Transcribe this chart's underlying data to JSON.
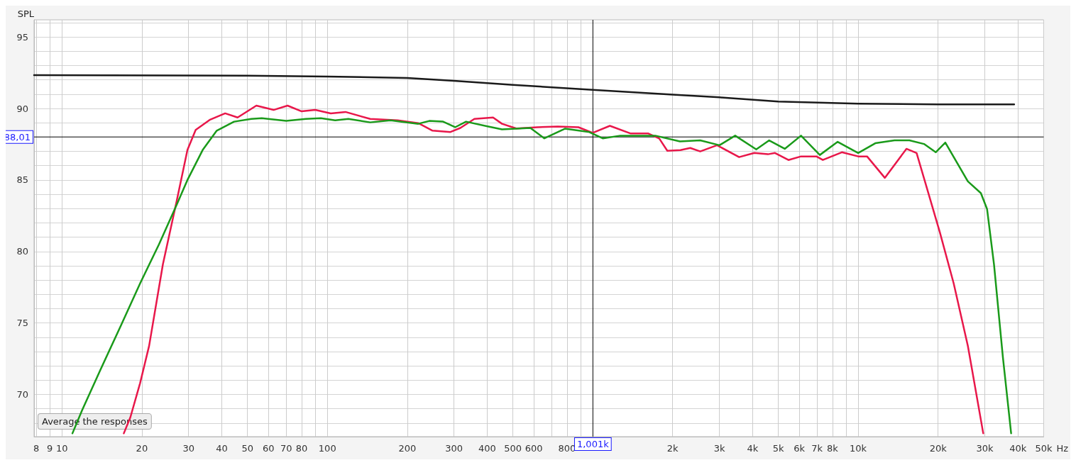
{
  "chart_data": {
    "type": "line",
    "ylabel": "SPL",
    "xlabel": "Hz",
    "log": "x",
    "grid": true,
    "marker": "none",
    "line_style": "solid",
    "xlim": [
      7.85,
      50000
    ],
    "ylim": [
      67.05,
      96.2
    ],
    "xticks": [
      8,
      9,
      10,
      20,
      30,
      40,
      50,
      60,
      70,
      {
        "value": 80,
        "label": "80"
      },
      {
        "value": 90,
        "label": null
      },
      100,
      200,
      300,
      400,
      500,
      600,
      {
        "value": 700,
        "label": null
      },
      {
        "value": 800,
        "label": "800"
      },
      {
        "value": 900,
        "label": null
      },
      {
        "value": 2000,
        "label": "2k"
      },
      {
        "value": 3000,
        "label": "3k"
      },
      {
        "value": 4000,
        "label": "4k"
      },
      {
        "value": 5000,
        "label": "5k"
      },
      {
        "value": 6000,
        "label": "6k"
      },
      {
        "value": 7000,
        "label": "7k"
      },
      {
        "value": 8000,
        "label": "8k"
      },
      {
        "value": 9000,
        "label": null
      },
      {
        "value": 10000,
        "label": "10k"
      },
      {
        "value": 20000,
        "label": "20k"
      },
      {
        "value": 30000,
        "label": "30k"
      },
      {
        "value": 40000,
        "label": "40k"
      },
      {
        "value": 50000,
        "label": "50k"
      }
    ],
    "yticks": [
      {
        "value": 68,
        "label": null
      },
      {
        "value": 69,
        "label": null
      },
      70,
      {
        "value": 71,
        "label": null
      },
      {
        "value": 72,
        "label": null
      },
      {
        "value": 73,
        "label": null
      },
      {
        "value": 74,
        "label": null
      },
      75,
      {
        "value": 76,
        "label": null
      },
      {
        "value": 77,
        "label": null
      },
      {
        "value": 78,
        "label": null
      },
      {
        "value": 79,
        "label": null
      },
      80,
      {
        "value": 81,
        "label": null
      },
      {
        "value": 82,
        "label": null
      },
      {
        "value": 83,
        "label": null
      },
      {
        "value": 84,
        "label": null
      },
      85,
      {
        "value": 86,
        "label": null
      },
      {
        "value": 87,
        "label": null
      },
      {
        "value": 89,
        "label": null
      },
      90,
      {
        "value": 91,
        "label": null
      },
      {
        "value": 92,
        "label": null
      },
      {
        "value": 93,
        "label": null
      },
      {
        "value": 94,
        "label": null
      },
      95,
      {
        "value": 96,
        "label": null
      }
    ],
    "ref_lines": [
      {
        "axis": "x",
        "value": 1001,
        "label": "1,001k",
        "color": "#000000"
      },
      {
        "axis": "y",
        "value": 88.01,
        "label": "88,01",
        "color": "#000000"
      }
    ],
    "annotations": [
      "Average the responses"
    ],
    "series": [
      {
        "color": "#1a1a1a",
        "x": [
          7.85,
          50,
          100,
          200,
          300,
          500,
          1000,
          2000,
          3000,
          5000,
          10000,
          20000,
          38700
        ],
        "values": [
          92.33,
          92.3,
          92.23,
          92.14,
          91.94,
          91.65,
          91.31,
          90.97,
          90.78,
          90.49,
          90.34,
          90.29,
          90.29
        ]
      },
      {
        "color": "#e8174a",
        "x": [
          17.1,
          18.1,
          19.7,
          21.3,
          24.0,
          27.1,
          29.7,
          31.9,
          36,
          41.2,
          45.9,
          54,
          62.7,
          70.8,
          80,
          90,
          103,
          117,
          145,
          184,
          220,
          249,
          290,
          317,
          358,
          421,
          455,
          515,
          618,
          738,
          883,
          1000,
          1160,
          1390,
          1620,
          1780,
          1910,
          2140,
          2330,
          2540,
          2940,
          3560,
          4060,
          4570,
          4860,
          5460,
          6090,
          6960,
          7360,
          8680,
          10000,
          10800,
          12600,
          15200,
          16600,
          20300,
          22900,
          25900,
          29600
        ],
        "values": [
          67.28,
          68.4,
          70.8,
          73.4,
          79.1,
          83.6,
          87.1,
          88.5,
          89.2,
          89.66,
          89.37,
          90.2,
          89.9,
          90.2,
          89.8,
          89.9,
          89.66,
          89.76,
          89.27,
          89.17,
          88.98,
          88.45,
          88.35,
          88.64,
          89.27,
          89.37,
          88.93,
          88.6,
          88.69,
          88.74,
          88.69,
          88.3,
          88.79,
          88.25,
          88.25,
          87.9,
          87.04,
          87.09,
          87.24,
          87.0,
          87.43,
          86.6,
          86.89,
          86.8,
          86.89,
          86.4,
          86.65,
          86.65,
          86.4,
          86.94,
          86.65,
          86.65,
          85.15,
          87.18,
          86.89,
          81.36,
          77.77,
          73.4,
          67.28
        ]
      },
      {
        "color": "#1a9a1a",
        "x": [
          10.95,
          11.9,
          13.9,
          16.7,
          19.7,
          23.2,
          27.1,
          29.7,
          33.9,
          38.3,
          44.5,
          51.7,
          56.6,
          70,
          83,
          94.5,
          107,
          120,
          145,
          173,
          220,
          242,
          273,
          303,
          333,
          404,
          455,
          582,
          657,
          785,
          970,
          1090,
          1270,
          1720,
          2130,
          2540,
          3000,
          3440,
          4130,
          4620,
          5290,
          6090,
          7170,
          8370,
          10000,
          11600,
          13700,
          15600,
          17700,
          19600,
          21300,
          25900,
          29000,
          30600,
          32500,
          35100,
          37700
        ],
        "values": [
          67.28,
          68.88,
          71.65,
          74.85,
          77.77,
          80.5,
          83.3,
          85,
          87.1,
          88.45,
          89.08,
          89.27,
          89.32,
          89.13,
          89.27,
          89.32,
          89.17,
          89.27,
          89.03,
          89.17,
          88.93,
          89.13,
          89.08,
          88.69,
          89.08,
          88.74,
          88.54,
          88.64,
          87.91,
          88.59,
          88.35,
          87.91,
          88.1,
          88.1,
          87.7,
          87.77,
          87.43,
          88.1,
          87.14,
          87.77,
          87.18,
          88.1,
          86.75,
          87.67,
          86.89,
          87.57,
          87.77,
          87.77,
          87.52,
          86.94,
          87.62,
          84.9,
          84.08,
          82.96,
          79.08,
          72.6,
          67.28
        ]
      }
    ]
  }
}
